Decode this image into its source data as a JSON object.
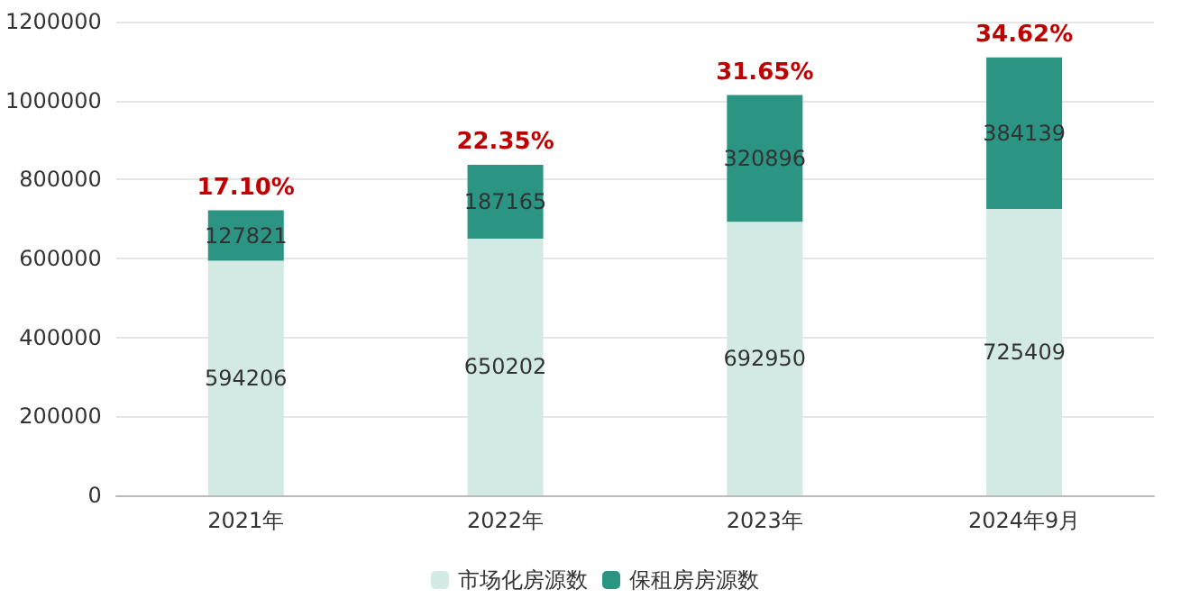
{
  "chart_data": {
    "type": "bar",
    "stacked": true,
    "categories": [
      "2021年",
      "2022年",
      "2023年",
      "2024年9月"
    ],
    "series": [
      {
        "name": "市场化房源数",
        "color": "#d3e9e4",
        "values": [
          594206,
          650202,
          692950,
          725409
        ]
      },
      {
        "name": "保租房房源数",
        "color": "#2b9483",
        "values": [
          127821,
          187165,
          320896,
          384139
        ]
      }
    ],
    "data_labels": true,
    "ylim": [
      0,
      1200000
    ],
    "yticks": [
      0,
      200000,
      400000,
      600000,
      800000,
      1000000,
      1200000
    ],
    "grid": "y",
    "legend": "bottom",
    "annotations": [
      {
        "text": "17.10%",
        "x": "2021年",
        "y": 722027
      },
      {
        "text": "22.35%",
        "x": "2022年",
        "y": 837367
      },
      {
        "text": "31.65%",
        "x": "2023年",
        "y": 1013846
      },
      {
        "text": "34.62%",
        "x": "2024年9月",
        "y": 1109548
      }
    ]
  }
}
